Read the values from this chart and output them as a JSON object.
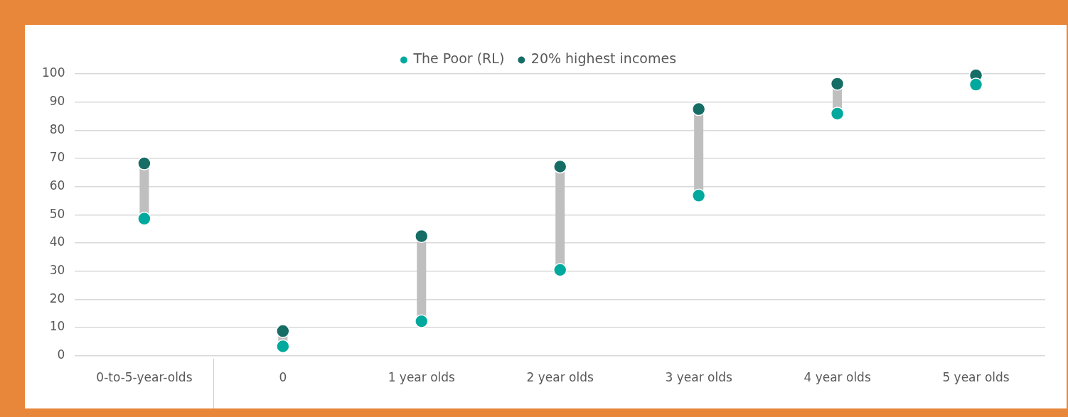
{
  "chart_data": {
    "type": "scatter",
    "categories": [
      "0-to-5-year-olds",
      "0",
      "1 year olds",
      "2 year olds",
      "3 year olds",
      "4 year olds",
      "5 year olds"
    ],
    "series": [
      {
        "name": "The Poor (RL)",
        "color": "#00a99d",
        "values": [
          48.6,
          3.3,
          12.2,
          30.4,
          56.8,
          85.9,
          96.2
        ]
      },
      {
        "name": "20% highest incomes",
        "color": "#166d66",
        "values": [
          68.2,
          8.7,
          42.4,
          67.1,
          87.5,
          96.5,
          99.5
        ]
      }
    ],
    "ylim": [
      0,
      100
    ],
    "yticks": [
      0,
      10,
      20,
      30,
      40,
      50,
      60,
      70,
      80,
      90,
      100
    ],
    "grid": "y",
    "legend": "top",
    "marker": "circle"
  }
}
